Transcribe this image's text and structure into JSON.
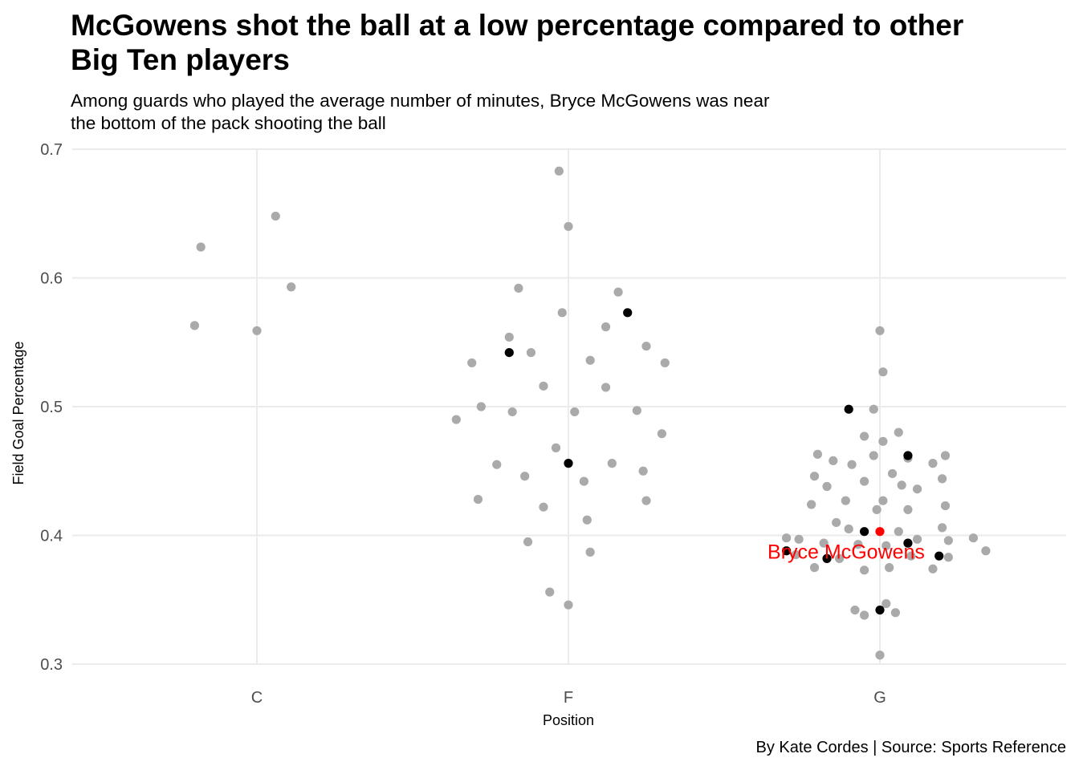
{
  "title_line1": "McGowens shot the ball at a low percentage compared to other",
  "title_line2": "Big Ten players",
  "subtitle_line1": "Among guards who played the average number of minutes, Bryce McGowens was near",
  "subtitle_line2": "the bottom of the pack shooting the ball",
  "caption": "By Kate Cordes | Source: Sports Reference",
  "chart_data": {
    "type": "scatter",
    "xlabel": "Position",
    "ylabel": "Field Goal Percentage",
    "categories": [
      "C",
      "F",
      "G"
    ],
    "ylim": [
      0.3,
      0.7
    ],
    "yticks": [
      "0.3",
      "0.4",
      "0.5",
      "0.6",
      "0.7"
    ],
    "grid": true,
    "colors": {
      "other": "#aaaaaa",
      "average_minutes_guard": "#000000",
      "highlight": "#ff0000"
    },
    "annotation": {
      "label": "Bryce McGowens",
      "color": "#ff0000"
    },
    "points": [
      {
        "pos": "C",
        "x": -0.2,
        "y": 0.563,
        "group": "other"
      },
      {
        "pos": "C",
        "x": -0.18,
        "y": 0.624,
        "group": "other"
      },
      {
        "pos": "C",
        "x": 0.0,
        "y": 0.559,
        "group": "other"
      },
      {
        "pos": "C",
        "x": 0.06,
        "y": 0.648,
        "group": "other"
      },
      {
        "pos": "C",
        "x": 0.11,
        "y": 0.593,
        "group": "other"
      },
      {
        "pos": "F",
        "x": -0.03,
        "y": 0.683,
        "group": "other"
      },
      {
        "pos": "F",
        "x": 0.0,
        "y": 0.64,
        "group": "other"
      },
      {
        "pos": "F",
        "x": -0.16,
        "y": 0.592,
        "group": "other"
      },
      {
        "pos": "F",
        "x": 0.16,
        "y": 0.589,
        "group": "other"
      },
      {
        "pos": "F",
        "x": -0.02,
        "y": 0.573,
        "group": "other"
      },
      {
        "pos": "F",
        "x": 0.12,
        "y": 0.562,
        "group": "other"
      },
      {
        "pos": "F",
        "x": -0.19,
        "y": 0.554,
        "group": "other"
      },
      {
        "pos": "F",
        "x": 0.25,
        "y": 0.547,
        "group": "other"
      },
      {
        "pos": "F",
        "x": -0.12,
        "y": 0.542,
        "group": "other"
      },
      {
        "pos": "F",
        "x": 0.07,
        "y": 0.536,
        "group": "other"
      },
      {
        "pos": "F",
        "x": -0.31,
        "y": 0.534,
        "group": "other"
      },
      {
        "pos": "F",
        "x": 0.31,
        "y": 0.534,
        "group": "other"
      },
      {
        "pos": "F",
        "x": -0.08,
        "y": 0.516,
        "group": "other"
      },
      {
        "pos": "F",
        "x": 0.12,
        "y": 0.515,
        "group": "other"
      },
      {
        "pos": "F",
        "x": -0.28,
        "y": 0.5,
        "group": "other"
      },
      {
        "pos": "F",
        "x": 0.22,
        "y": 0.497,
        "group": "other"
      },
      {
        "pos": "F",
        "x": 0.02,
        "y": 0.496,
        "group": "other"
      },
      {
        "pos": "F",
        "x": -0.18,
        "y": 0.496,
        "group": "other"
      },
      {
        "pos": "F",
        "x": -0.36,
        "y": 0.49,
        "group": "other"
      },
      {
        "pos": "F",
        "x": 0.3,
        "y": 0.479,
        "group": "other"
      },
      {
        "pos": "F",
        "x": -0.04,
        "y": 0.468,
        "group": "other"
      },
      {
        "pos": "F",
        "x": 0.14,
        "y": 0.456,
        "group": "other"
      },
      {
        "pos": "F",
        "x": -0.23,
        "y": 0.455,
        "group": "other"
      },
      {
        "pos": "F",
        "x": 0.24,
        "y": 0.45,
        "group": "other"
      },
      {
        "pos": "F",
        "x": -0.14,
        "y": 0.446,
        "group": "other"
      },
      {
        "pos": "F",
        "x": 0.05,
        "y": 0.442,
        "group": "other"
      },
      {
        "pos": "F",
        "x": -0.29,
        "y": 0.428,
        "group": "other"
      },
      {
        "pos": "F",
        "x": 0.25,
        "y": 0.427,
        "group": "other"
      },
      {
        "pos": "F",
        "x": -0.08,
        "y": 0.422,
        "group": "other"
      },
      {
        "pos": "F",
        "x": 0.06,
        "y": 0.412,
        "group": "other"
      },
      {
        "pos": "F",
        "x": -0.13,
        "y": 0.395,
        "group": "other"
      },
      {
        "pos": "F",
        "x": 0.07,
        "y": 0.387,
        "group": "other"
      },
      {
        "pos": "F",
        "x": -0.06,
        "y": 0.356,
        "group": "other"
      },
      {
        "pos": "F",
        "x": 0.0,
        "y": 0.346,
        "group": "other"
      },
      {
        "pos": "G",
        "x": 0.0,
        "y": 0.559,
        "group": "other"
      },
      {
        "pos": "G",
        "x": 0.01,
        "y": 0.527,
        "group": "other"
      },
      {
        "pos": "G",
        "x": -0.02,
        "y": 0.498,
        "group": "other"
      },
      {
        "pos": "G",
        "x": 0.06,
        "y": 0.48,
        "group": "other"
      },
      {
        "pos": "G",
        "x": -0.05,
        "y": 0.477,
        "group": "other"
      },
      {
        "pos": "G",
        "x": 0.01,
        "y": 0.473,
        "group": "other"
      },
      {
        "pos": "G",
        "x": -0.2,
        "y": 0.463,
        "group": "other"
      },
      {
        "pos": "G",
        "x": -0.02,
        "y": 0.462,
        "group": "other"
      },
      {
        "pos": "G",
        "x": 0.21,
        "y": 0.462,
        "group": "other"
      },
      {
        "pos": "G",
        "x": 0.09,
        "y": 0.46,
        "group": "other"
      },
      {
        "pos": "G",
        "x": -0.15,
        "y": 0.458,
        "group": "other"
      },
      {
        "pos": "G",
        "x": 0.17,
        "y": 0.456,
        "group": "other"
      },
      {
        "pos": "G",
        "x": -0.09,
        "y": 0.455,
        "group": "other"
      },
      {
        "pos": "G",
        "x": 0.04,
        "y": 0.448,
        "group": "other"
      },
      {
        "pos": "G",
        "x": -0.21,
        "y": 0.446,
        "group": "other"
      },
      {
        "pos": "G",
        "x": 0.2,
        "y": 0.444,
        "group": "other"
      },
      {
        "pos": "G",
        "x": -0.05,
        "y": 0.442,
        "group": "other"
      },
      {
        "pos": "G",
        "x": 0.07,
        "y": 0.439,
        "group": "other"
      },
      {
        "pos": "G",
        "x": -0.17,
        "y": 0.438,
        "group": "other"
      },
      {
        "pos": "G",
        "x": 0.12,
        "y": 0.436,
        "group": "other"
      },
      {
        "pos": "G",
        "x": -0.11,
        "y": 0.427,
        "group": "other"
      },
      {
        "pos": "G",
        "x": 0.01,
        "y": 0.427,
        "group": "other"
      },
      {
        "pos": "G",
        "x": -0.22,
        "y": 0.424,
        "group": "other"
      },
      {
        "pos": "G",
        "x": 0.21,
        "y": 0.423,
        "group": "other"
      },
      {
        "pos": "G",
        "x": 0.09,
        "y": 0.42,
        "group": "other"
      },
      {
        "pos": "G",
        "x": -0.01,
        "y": 0.42,
        "group": "other"
      },
      {
        "pos": "G",
        "x": -0.14,
        "y": 0.41,
        "group": "other"
      },
      {
        "pos": "G",
        "x": 0.2,
        "y": 0.406,
        "group": "other"
      },
      {
        "pos": "G",
        "x": -0.1,
        "y": 0.405,
        "group": "other"
      },
      {
        "pos": "G",
        "x": 0.06,
        "y": 0.403,
        "group": "other"
      },
      {
        "pos": "G",
        "x": -0.3,
        "y": 0.398,
        "group": "other"
      },
      {
        "pos": "G",
        "x": -0.26,
        "y": 0.397,
        "group": "other"
      },
      {
        "pos": "G",
        "x": 0.12,
        "y": 0.397,
        "group": "other"
      },
      {
        "pos": "G",
        "x": 0.3,
        "y": 0.398,
        "group": "other"
      },
      {
        "pos": "G",
        "x": 0.22,
        "y": 0.396,
        "group": "other"
      },
      {
        "pos": "G",
        "x": -0.18,
        "y": 0.394,
        "group": "other"
      },
      {
        "pos": "G",
        "x": -0.07,
        "y": 0.393,
        "group": "other"
      },
      {
        "pos": "G",
        "x": 0.02,
        "y": 0.392,
        "group": "other"
      },
      {
        "pos": "G",
        "x": 0.34,
        "y": 0.388,
        "group": "other"
      },
      {
        "pos": "G",
        "x": -0.27,
        "y": 0.385,
        "group": "other"
      },
      {
        "pos": "G",
        "x": 0.1,
        "y": 0.384,
        "group": "other"
      },
      {
        "pos": "G",
        "x": 0.22,
        "y": 0.383,
        "group": "other"
      },
      {
        "pos": "G",
        "x": -0.13,
        "y": 0.382,
        "group": "other"
      },
      {
        "pos": "G",
        "x": -0.21,
        "y": 0.375,
        "group": "other"
      },
      {
        "pos": "G",
        "x": 0.03,
        "y": 0.375,
        "group": "other"
      },
      {
        "pos": "G",
        "x": 0.17,
        "y": 0.374,
        "group": "other"
      },
      {
        "pos": "G",
        "x": -0.05,
        "y": 0.373,
        "group": "other"
      },
      {
        "pos": "G",
        "x": 0.02,
        "y": 0.347,
        "group": "other"
      },
      {
        "pos": "G",
        "x": -0.08,
        "y": 0.342,
        "group": "other"
      },
      {
        "pos": "G",
        "x": 0.05,
        "y": 0.34,
        "group": "other"
      },
      {
        "pos": "G",
        "x": -0.05,
        "y": 0.338,
        "group": "other"
      },
      {
        "pos": "G",
        "x": 0.0,
        "y": 0.307,
        "group": "other"
      },
      {
        "pos": "F",
        "x": 0.19,
        "y": 0.573,
        "group": "average_minutes_guard"
      },
      {
        "pos": "F",
        "x": -0.19,
        "y": 0.542,
        "group": "average_minutes_guard"
      },
      {
        "pos": "F",
        "x": 0.0,
        "y": 0.456,
        "group": "average_minutes_guard"
      },
      {
        "pos": "G",
        "x": -0.1,
        "y": 0.498,
        "group": "average_minutes_guard"
      },
      {
        "pos": "G",
        "x": 0.09,
        "y": 0.462,
        "group": "average_minutes_guard"
      },
      {
        "pos": "G",
        "x": -0.05,
        "y": 0.403,
        "group": "average_minutes_guard"
      },
      {
        "pos": "G",
        "x": 0.09,
        "y": 0.394,
        "group": "average_minutes_guard"
      },
      {
        "pos": "G",
        "x": -0.3,
        "y": 0.388,
        "group": "average_minutes_guard"
      },
      {
        "pos": "G",
        "x": 0.19,
        "y": 0.384,
        "group": "average_minutes_guard"
      },
      {
        "pos": "G",
        "x": -0.17,
        "y": 0.382,
        "group": "average_minutes_guard"
      },
      {
        "pos": "G",
        "x": 0.0,
        "y": 0.342,
        "group": "average_minutes_guard"
      },
      {
        "pos": "G",
        "x": 0.0,
        "y": 0.403,
        "group": "highlight",
        "name": "Bryce McGowens"
      }
    ]
  }
}
